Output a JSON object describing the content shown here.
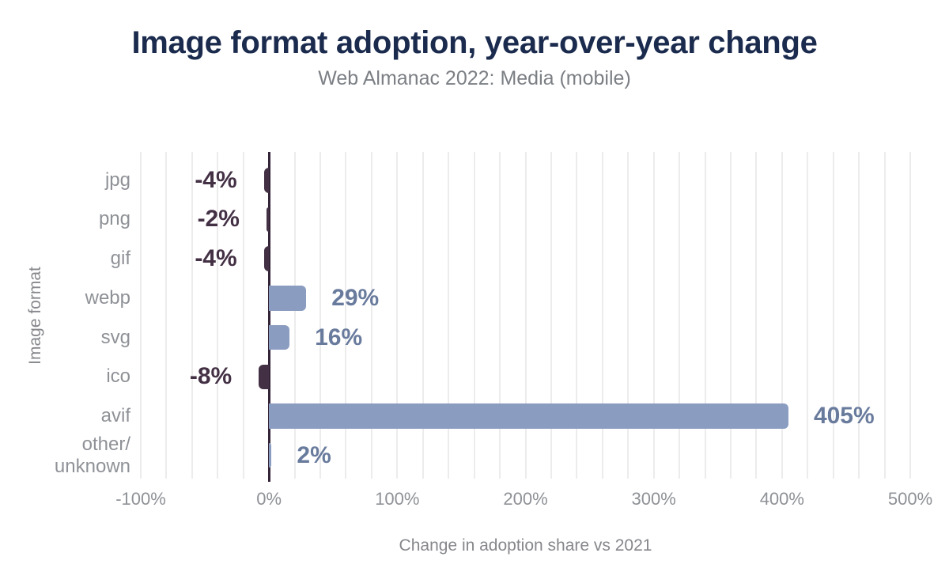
{
  "page": {
    "title": "Image format adoption, year-over-year change",
    "subtitle": "Web Almanac 2022: Media (mobile)"
  },
  "chart_data": {
    "type": "bar",
    "orientation": "horizontal",
    "title": "Image format adoption, year-over-year change",
    "subtitle": "Web Almanac 2022: Media (mobile)",
    "xlabel": "Change in adoption share vs 2021",
    "ylabel": "Image format",
    "categories": [
      "jpg",
      "png",
      "gif",
      "webp",
      "svg",
      "ico",
      "avif",
      "other/\nunknown"
    ],
    "values": [
      -4,
      -2,
      -4,
      29,
      16,
      -8,
      405,
      2
    ],
    "value_labels": [
      "-4%",
      "-2%",
      "-4%",
      "29%",
      "16%",
      "-8%",
      "405%",
      "2%"
    ],
    "xlim": [
      -100,
      500
    ],
    "x_ticks": [
      -100,
      0,
      100,
      200,
      300,
      400,
      500
    ],
    "x_tick_labels": [
      "-100%",
      "0%",
      "100%",
      "200%",
      "300%",
      "400%",
      "500%"
    ],
    "minor_grid_step_pct": 20,
    "grid": true,
    "legend": false,
    "zero_baseline": true,
    "colors": {
      "positive_bar": "#8b9cc1",
      "negative_bar": "#433044",
      "positive_label": "#697b9d",
      "negative_label": "#433044",
      "zero_line": "#342438",
      "gridline": "#ececec",
      "title": "#1b2b4e",
      "subtitle": "#7b7f84",
      "axis_text": "#8e9196",
      "axis_title": "#85878b",
      "background": "#ffffff"
    }
  }
}
